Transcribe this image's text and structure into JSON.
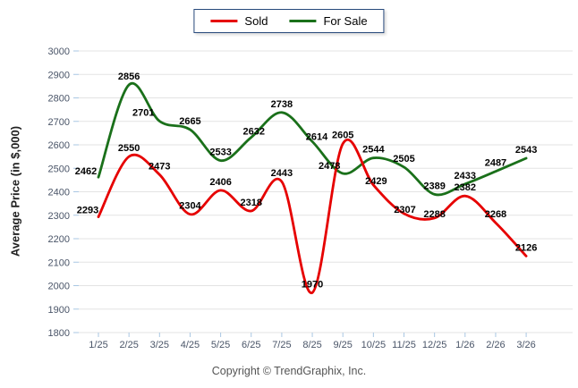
{
  "legend": {
    "items": [
      {
        "label": "Sold"
      },
      {
        "label": "For Sale"
      }
    ]
  },
  "footer": "Copyright © TrendGraphix, Inc.",
  "chart_data": {
    "type": "line",
    "title": "",
    "xlabel": "",
    "ylabel": "Average Price (in $,000)",
    "categories": [
      "1/25",
      "2/25",
      "3/25",
      "4/25",
      "5/25",
      "6/25",
      "7/25",
      "8/25",
      "9/25",
      "10/25",
      "11/25",
      "12/25",
      "1/26",
      "2/26",
      "3/26"
    ],
    "series": [
      {
        "name": "Sold",
        "color": "#e60000",
        "values": [
          2293,
          2550,
          2473,
          2304,
          2406,
          2318,
          2443,
          1970,
          2605,
          2429,
          2307,
          2288,
          2382,
          2268,
          2126
        ]
      },
      {
        "name": "For Sale",
        "color": "#1a701a",
        "values": [
          2462,
          2856,
          2701,
          2665,
          2533,
          2632,
          2738,
          2614,
          2478,
          2544,
          2505,
          2389,
          2433,
          2487,
          2543
        ]
      }
    ],
    "ylim": [
      1800,
      3000
    ],
    "y_ticks": [
      1800,
      1900,
      2000,
      2100,
      2200,
      2300,
      2400,
      2500,
      2600,
      2700,
      2800,
      2900,
      3000
    ],
    "grid": true,
    "legend_position": "top-center",
    "point_labels": true
  }
}
